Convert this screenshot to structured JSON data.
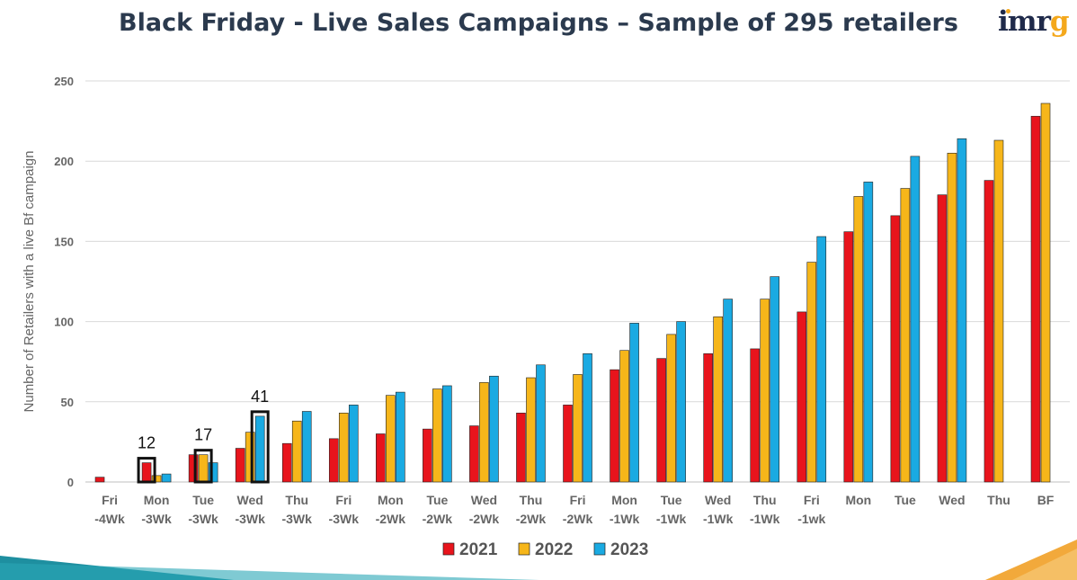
{
  "header": {
    "title": "Black Friday - Live Sales Campaigns – Sample of 295 retailers",
    "logo_text": "imr",
    "logo_accent": "g"
  },
  "chart_data": {
    "type": "bar",
    "title": "Black Friday - Live Sales Campaigns – Sample of 295 retailers",
    "ylabel": "Number of Retailers with a live Bf campaign",
    "xlabel": "",
    "ylim": [
      0,
      250
    ],
    "yticks": [
      0,
      50,
      100,
      150,
      200,
      250
    ],
    "grid": true,
    "legend_position": "bottom",
    "categories": [
      [
        "Fri",
        "-4Wk"
      ],
      [
        "Mon",
        "-3Wk"
      ],
      [
        "Tue",
        "-3Wk"
      ],
      [
        "Wed",
        "-3Wk"
      ],
      [
        "Thu",
        "-3Wk"
      ],
      [
        "Fri",
        "-3Wk"
      ],
      [
        "Mon",
        "-2Wk"
      ],
      [
        "Tue",
        "-2Wk"
      ],
      [
        "Wed",
        "-2Wk"
      ],
      [
        "Thu",
        "-2Wk"
      ],
      [
        "Fri",
        "-2Wk"
      ],
      [
        "Mon",
        "-1Wk"
      ],
      [
        "Tue",
        "-1Wk"
      ],
      [
        "Wed",
        "-1Wk"
      ],
      [
        "Thu",
        "-1Wk"
      ],
      [
        "Fri",
        "-1wk"
      ],
      [
        "Mon"
      ],
      [
        "Tue"
      ],
      [
        "Wed"
      ],
      [
        "Thu"
      ],
      [
        "BF"
      ]
    ],
    "series": [
      {
        "name": "2021",
        "color": "#e8141c",
        "values": [
          3,
          12,
          17,
          21,
          24,
          27,
          30,
          33,
          35,
          43,
          48,
          70,
          77,
          80,
          83,
          106,
          156,
          166,
          179,
          188,
          228
        ]
      },
      {
        "name": "2022",
        "color": "#f6b61a",
        "values": [
          0,
          4,
          17,
          31,
          38,
          43,
          54,
          58,
          62,
          65,
          67,
          82,
          92,
          103,
          114,
          137,
          178,
          183,
          205,
          213,
          236
        ]
      },
      {
        "name": "2023",
        "color": "#1aaae2",
        "values": [
          0,
          5,
          12,
          41,
          44,
          48,
          56,
          60,
          66,
          73,
          80,
          99,
          100,
          114,
          128,
          153,
          187,
          203,
          214,
          null,
          null
        ]
      }
    ],
    "annotations": [
      {
        "text": "12",
        "category_index": 1,
        "series": "2021",
        "boxed": true
      },
      {
        "text": "17",
        "category_index": 2,
        "series": "2022",
        "boxed": true
      },
      {
        "text": "41",
        "category_index": 3,
        "series": "2023",
        "boxed": true
      }
    ]
  },
  "colors": {
    "title": "#2b3a4e",
    "axis_text": "#666666",
    "grid": "#d9d9d9",
    "footer_teal": "#1e8fa0",
    "footer_amber": "#f2a93b"
  }
}
